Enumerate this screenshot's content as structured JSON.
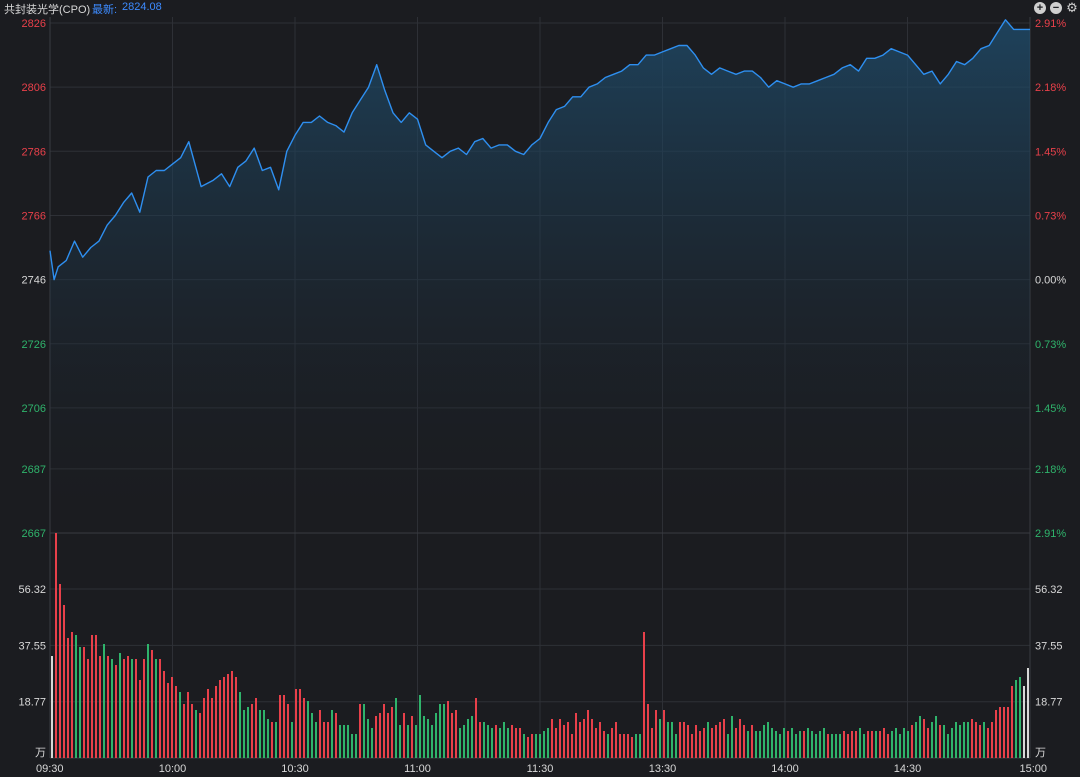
{
  "header": {
    "title": "共封装光学(CPO)",
    "last_label": "最新:",
    "last_value": "2824.08",
    "icons": [
      "plus-circle-icon",
      "minus-circle-icon",
      "gear-icon"
    ]
  },
  "colors": {
    "up": "#e8404a",
    "down": "#2fb36b",
    "neutral": "#d8d8d8",
    "line": "#2e8ff0",
    "accent": "#3d8bff",
    "grid": "#2e3036",
    "background": "#1b1c20"
  },
  "chart_data": {
    "type": "line",
    "price": {
      "base": 2746,
      "ticks": [
        "2826",
        "2806",
        "2786",
        "2766",
        "2746",
        "2726",
        "2706",
        "2687",
        "2667"
      ],
      "pct_ticks": [
        "2.91%",
        "2.18%",
        "1.45%",
        "0.73%",
        "0.00%",
        "0.73%",
        "1.45%",
        "2.18%",
        "2.91%"
      ],
      "ylim": [
        2667,
        2826
      ],
      "time_ticks": [
        "09:30",
        "10:00",
        "10:30",
        "11:00",
        "11:30",
        "13:30",
        "14:00",
        "14:30",
        "15:00"
      ],
      "x_minutes": [
        0,
        1,
        2,
        4,
        6,
        8,
        10,
        12,
        14,
        16,
        18,
        20,
        22,
        24,
        26,
        28,
        30,
        32,
        34,
        37,
        40,
        42,
        44,
        46,
        48,
        50,
        52,
        54,
        56,
        58,
        60,
        62,
        64,
        66,
        68,
        70,
        72,
        74,
        76,
        78,
        80,
        82,
        84,
        86,
        88,
        90,
        92,
        94,
        96,
        98,
        100,
        102,
        104,
        106,
        108,
        110,
        112,
        114,
        116,
        118,
        120,
        122,
        124,
        126,
        128,
        130,
        132,
        134,
        136,
        138,
        140,
        142,
        144,
        146,
        148,
        150,
        152,
        154,
        156,
        158,
        160,
        162,
        164,
        166,
        168,
        170,
        172,
        174,
        176,
        178,
        180,
        182,
        184,
        186,
        188,
        190,
        192,
        194,
        196,
        198,
        200,
        202,
        204,
        206,
        208,
        210,
        212,
        214,
        216,
        218,
        220,
        222,
        224,
        226,
        228,
        230,
        232,
        234,
        236,
        238,
        240
      ],
      "values": [
        2755,
        2746,
        2750,
        2752,
        2758,
        2753,
        2756,
        2758,
        2763,
        2766,
        2770,
        2773,
        2767,
        2778,
        2780,
        2780,
        2782,
        2784,
        2789,
        2775,
        2777,
        2779,
        2775,
        2781,
        2783,
        2787,
        2780,
        2781,
        2774,
        2786,
        2791,
        2795,
        2795,
        2797,
        2795,
        2794,
        2792,
        2798,
        2802,
        2806,
        2813,
        2805,
        2798,
        2795,
        2798,
        2796,
        2788,
        2786,
        2784,
        2786,
        2787,
        2785,
        2789,
        2790,
        2787,
        2788,
        2788,
        2786,
        2785,
        2788,
        2790,
        2795,
        2799,
        2800,
        2803,
        2803,
        2806,
        2807,
        2809,
        2810,
        2811,
        2813,
        2813,
        2816,
        2816,
        2817,
        2818,
        2819,
        2819,
        2816,
        2812,
        2810,
        2812,
        2811,
        2810,
        2811,
        2811,
        2809,
        2806,
        2808,
        2807,
        2806,
        2807,
        2807,
        2808,
        2809,
        2810,
        2812,
        2813,
        2811,
        2815,
        2815,
        2816,
        2818,
        2817,
        2816,
        2813,
        2810,
        2811,
        2807,
        2810,
        2814,
        2813,
        2815,
        2818,
        2819,
        2823,
        2827,
        2824,
        2824,
        2824
      ]
    },
    "volume": {
      "ticks": [
        "56.32",
        "37.55",
        "18.77"
      ],
      "unit": "万",
      "ylim": [
        0,
        75
      ],
      "values": [
        34,
        75,
        58,
        51,
        40,
        42,
        41,
        37,
        37,
        33,
        41,
        41,
        34,
        38,
        34,
        33,
        31,
        35,
        33,
        34,
        33,
        33,
        26,
        33,
        38,
        36,
        33,
        33,
        29,
        25,
        27,
        24,
        22,
        18,
        22,
        18,
        16,
        15,
        20,
        23,
        20,
        24,
        26,
        27,
        28,
        29,
        27,
        22,
        16,
        17,
        18,
        20,
        16,
        16,
        13,
        12,
        12,
        21,
        21,
        18,
        12,
        23,
        23,
        20,
        19,
        15,
        12,
        16,
        12,
        12,
        16,
        15,
        11,
        11,
        11,
        8,
        8,
        18,
        18,
        13,
        10,
        14,
        15,
        18,
        15,
        17,
        20,
        11,
        15,
        11,
        14,
        11,
        21,
        14,
        13,
        11,
        15,
        18,
        18,
        19,
        15,
        16,
        10,
        11,
        13,
        14,
        20,
        12,
        12,
        11,
        10,
        11,
        10,
        12,
        10,
        11,
        10,
        10,
        8,
        7,
        8,
        8,
        8,
        9,
        10,
        13,
        10,
        13,
        11,
        12,
        8,
        15,
        12,
        13,
        16,
        13,
        10,
        12,
        9,
        8,
        10,
        12,
        8,
        8,
        8,
        7,
        8,
        8,
        42,
        18,
        10,
        16,
        13,
        16,
        12,
        12,
        8,
        12,
        12,
        11,
        8,
        11,
        9,
        10,
        12,
        10,
        11,
        12,
        13,
        8,
        14,
        10,
        13,
        11,
        9,
        11,
        9,
        9,
        11,
        12,
        10,
        9,
        8,
        10,
        9,
        10,
        8,
        9,
        9,
        10,
        9,
        8,
        9,
        10,
        8,
        8,
        8,
        8,
        9,
        8,
        9,
        9,
        10,
        8,
        9,
        9,
        9,
        9,
        10,
        8,
        9,
        10,
        8,
        10,
        9,
        11,
        12,
        14,
        13,
        10,
        12,
        14,
        11,
        11,
        8,
        10,
        12,
        11,
        12,
        12,
        13,
        12,
        11,
        12,
        10,
        12,
        16,
        17,
        17,
        17,
        24,
        26,
        27,
        24,
        30
      ],
      "directions": [
        "n",
        "u",
        "u",
        "u",
        "u",
        "u",
        "d",
        "d",
        "u",
        "u",
        "u",
        "u",
        "u",
        "d",
        "u",
        "d",
        "u",
        "d",
        "u",
        "u",
        "d",
        "u",
        "u",
        "u",
        "d",
        "u",
        "d",
        "u",
        "u",
        "u",
        "u",
        "u",
        "d",
        "u",
        "u",
        "u",
        "d",
        "u",
        "u",
        "u",
        "u",
        "u",
        "u",
        "u",
        "u",
        "u",
        "u",
        "d",
        "d",
        "d",
        "u",
        "u",
        "d",
        "d",
        "d",
        "u",
        "d",
        "u",
        "u",
        "u",
        "d",
        "u",
        "u",
        "u",
        "d",
        "d",
        "d",
        "u",
        "u",
        "u",
        "d",
        "u",
        "d",
        "d",
        "d",
        "d",
        "d",
        "u",
        "d",
        "d",
        "d",
        "u",
        "u",
        "u",
        "u",
        "u",
        "d",
        "d",
        "u",
        "d",
        "u",
        "d",
        "d",
        "d",
        "d",
        "d",
        "d",
        "d",
        "d",
        "u",
        "u",
        "u",
        "d",
        "d",
        "d",
        "d",
        "u",
        "u",
        "d",
        "d",
        "d",
        "u",
        "d",
        "d",
        "d",
        "u",
        "u",
        "u",
        "d",
        "u",
        "u",
        "d",
        "d",
        "d",
        "d",
        "u",
        "u",
        "u",
        "u",
        "u",
        "u",
        "u",
        "u",
        "u",
        "u",
        "u",
        "u",
        "u",
        "u",
        "d",
        "u",
        "u",
        "u",
        "u",
        "u",
        "u",
        "d",
        "d",
        "u",
        "u",
        "u",
        "u",
        "d",
        "u",
        "d",
        "d",
        "d",
        "u",
        "u",
        "u",
        "u",
        "u",
        "u",
        "u",
        "d",
        "u",
        "u",
        "u",
        "u",
        "d",
        "d",
        "u",
        "u",
        "u",
        "d",
        "u",
        "d",
        "d",
        "d",
        "d",
        "d",
        "d",
        "d",
        "d",
        "u",
        "d",
        "d",
        "d",
        "u",
        "d",
        "d",
        "d",
        "d",
        "d",
        "u",
        "d",
        "d",
        "d",
        "u",
        "u",
        "u",
        "u",
        "d",
        "d",
        "u",
        "u",
        "d",
        "u",
        "u",
        "u",
        "d",
        "d",
        "d",
        "d",
        "d",
        "u",
        "d",
        "d",
        "u",
        "u",
        "d",
        "d",
        "u",
        "d",
        "d",
        "d",
        "d",
        "d",
        "d",
        "d",
        "u",
        "u",
        "u",
        "d",
        "u",
        "u",
        "u",
        "u",
        "u",
        "u",
        "u",
        "d",
        "d"
      ]
    },
    "grid": true
  }
}
